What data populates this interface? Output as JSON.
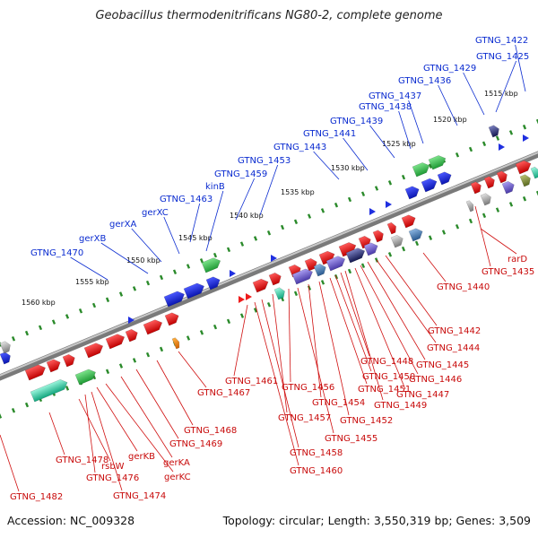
{
  "title": "Geobacillus thermodenitrificans NG80-2, complete genome",
  "footer": {
    "accession": "Accession: NC_009328",
    "summary": "Topology: circular; Length: 3,550,319 bp; Genes: 3,509"
  },
  "colors": {
    "backbone": "#777777",
    "tick": "#2a8a2a",
    "label_top": "#0a2bd0",
    "label_bottom": "#d01010",
    "gene_red": "#ee1c1c",
    "gene_blue": "#1f2fe0",
    "gene_green": "#33c24a",
    "gene_purple": "#7264c8",
    "gene_gray": "#a8a8a8",
    "gene_cyan": "#29c7a3"
  },
  "kbp_marks": [
    "1515 kbp",
    "1520 kbp",
    "1525 kbp",
    "1530 kbp",
    "1535 kbp",
    "1540 kbp",
    "1545 kbp",
    "1550 kbp",
    "1555 kbp",
    "1560 kbp"
  ],
  "top_labels": [
    "GTNG_1422",
    "GTNG_1425",
    "GTNG_1429",
    "GTNG_1436",
    "GTNG_1437",
    "GTNG_1438",
    "GTNG_1439",
    "GTNG_1441",
    "GTNG_1443",
    "GTNG_1453",
    "GTNG_1459",
    "kinB",
    "GTNG_1463",
    "gerXC",
    "gerXA",
    "gerXB",
    "GTNG_1470"
  ],
  "bottom_labels": [
    "rarD",
    "GTNG_1435",
    "GTNG_1440",
    "GTNG_1442",
    "GTNG_1444",
    "GTNG_1445",
    "GTNG_1446",
    "GTNG_1447",
    "GTNG_1448",
    "GTNG_1449",
    "GTNG_1450",
    "GTNG_1451",
    "GTNG_1452",
    "GTNG_1454",
    "GTNG_1455",
    "GTNG_1456",
    "GTNG_1457",
    "GTNG_1458",
    "GTNG_1460",
    "GTNG_1461",
    "GTNG_1467",
    "GTNG_1468",
    "GTNG_1469",
    "gerKA",
    "gerKC",
    "gerKB",
    "GTNG_1474",
    "GTNG_1476",
    "rsbW",
    "GTNG_1478",
    "GTNG_1482"
  ]
}
